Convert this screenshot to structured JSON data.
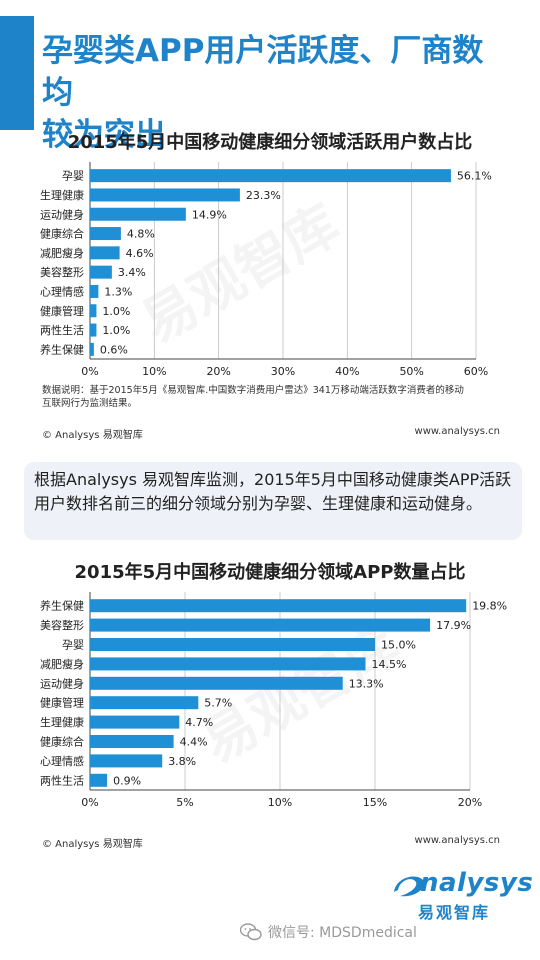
{
  "header": {
    "title_line1": "孕婴类APP用户活跃度、厂商数均",
    "title_line2": "较为突出",
    "accent_color": "#1f83c9"
  },
  "chart_data": [
    {
      "type": "bar",
      "orientation": "horizontal",
      "title": "2015年5月中国移动健康细分领域活跃用户数占比",
      "categories": [
        "孕婴",
        "生理健康",
        "运动健身",
        "健康综合",
        "减肥瘦身",
        "美容整形",
        "心理情感",
        "健康管理",
        "两性生活",
        "养生保健"
      ],
      "values": [
        56.1,
        23.3,
        14.9,
        4.8,
        4.6,
        3.4,
        1.3,
        1.0,
        1.0,
        0.6
      ],
      "value_labels": [
        "56.1%",
        "23.3%",
        "14.9%",
        "4.8%",
        "4.6%",
        "3.4%",
        "1.3%",
        "1.0%",
        "1.0%",
        "0.6%"
      ],
      "xlim": [
        0,
        60
      ],
      "ticks": [
        "0%",
        "10%",
        "20%",
        "30%",
        "40%",
        "50%",
        "60%"
      ],
      "grid": "vertical",
      "bar_color": "#1f8fd6"
    },
    {
      "type": "bar",
      "orientation": "horizontal",
      "title": "2015年5月中国移动健康细分领域APP数量占比",
      "categories": [
        "养生保健",
        "美容整形",
        "孕婴",
        "减肥瘦身",
        "运动健身",
        "健康管理",
        "生理健康",
        "健康综合",
        "心理情感",
        "两性生活"
      ],
      "values": [
        19.8,
        17.9,
        15.0,
        14.5,
        13.3,
        5.7,
        4.7,
        4.4,
        3.8,
        0.9
      ],
      "value_labels": [
        "19.8%",
        "17.9%",
        "15.0%",
        "14.5%",
        "13.3%",
        "5.7%",
        "4.7%",
        "4.4%",
        "3.8%",
        "0.9%"
      ],
      "xlim": [
        0,
        20
      ],
      "ticks": [
        "0%",
        "5%",
        "10%",
        "15%",
        "20%"
      ],
      "grid": "vertical",
      "bar_color": "#1f8fd6"
    }
  ],
  "note": {
    "line1": "数据说明：基于2015年5月《易观智库.中国数字消费用户雷达》341万移动端活跃数字消费者的移动",
    "line2": "互联网行为监测结果。"
  },
  "footer1": {
    "left": "© Analysys 易观智库",
    "right": "www.analysys.cn"
  },
  "summary": {
    "text": "根据Analysys 易观智库监测，2015年5月中国移动健康类APP活跃用户数排名前三的细分领域分别为孕婴、生理健康和运动健身。"
  },
  "footer2": {
    "left": "© Analysys 易观智库",
    "right": "www.analysys.cn"
  },
  "logo": {
    "word": "nalysys",
    "cn": "易观智库"
  },
  "watermark": {
    "text": "易观智库"
  },
  "wechat": {
    "text": "微信号: MDSDmedical",
    "icon": "wechat-icon"
  }
}
